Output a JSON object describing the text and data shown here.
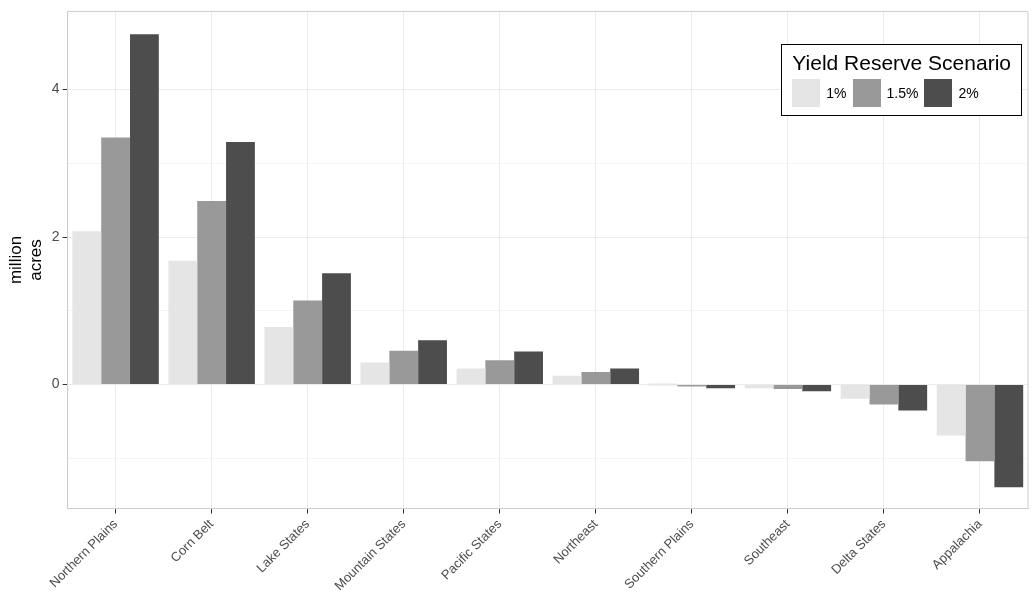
{
  "chart_data": {
    "type": "bar",
    "ylabel": "million acres",
    "legend_title": "Yield Reserve Scenario",
    "legend": "top right",
    "grid": true,
    "categories": [
      "Northern Plains",
      "Corn Belt",
      "Lake States",
      "Mountain States",
      "Pacific States",
      "Northeast",
      "Southern Plains",
      "Southeast",
      "Delta States",
      "Appalachia"
    ],
    "series": [
      {
        "name": "1%",
        "color": "#e5e5e5",
        "values": [
          2.08,
          1.68,
          0.78,
          0.3,
          0.22,
          0.12,
          0,
          -0.05,
          -0.19,
          -0.69
        ]
      },
      {
        "name": "1.5%",
        "color": "#999999",
        "values": [
          3.35,
          2.49,
          1.14,
          0.46,
          0.33,
          0.17,
          -0.02,
          -0.06,
          -0.27,
          -1.04
        ]
      },
      {
        "name": "2%",
        "color": "#4d4d4d",
        "values": [
          4.75,
          3.29,
          1.51,
          0.6,
          0.45,
          0.22,
          -0.05,
          -0.09,
          -0.35,
          -1.39
        ]
      }
    ],
    "ylim": [
      -1.68,
      5.06
    ],
    "yticks": [
      {
        "value": -1,
        "label": null
      },
      0,
      {
        "value": 1,
        "label": null
      },
      2,
      {
        "value": 3,
        "label": null
      },
      4
    ]
  }
}
